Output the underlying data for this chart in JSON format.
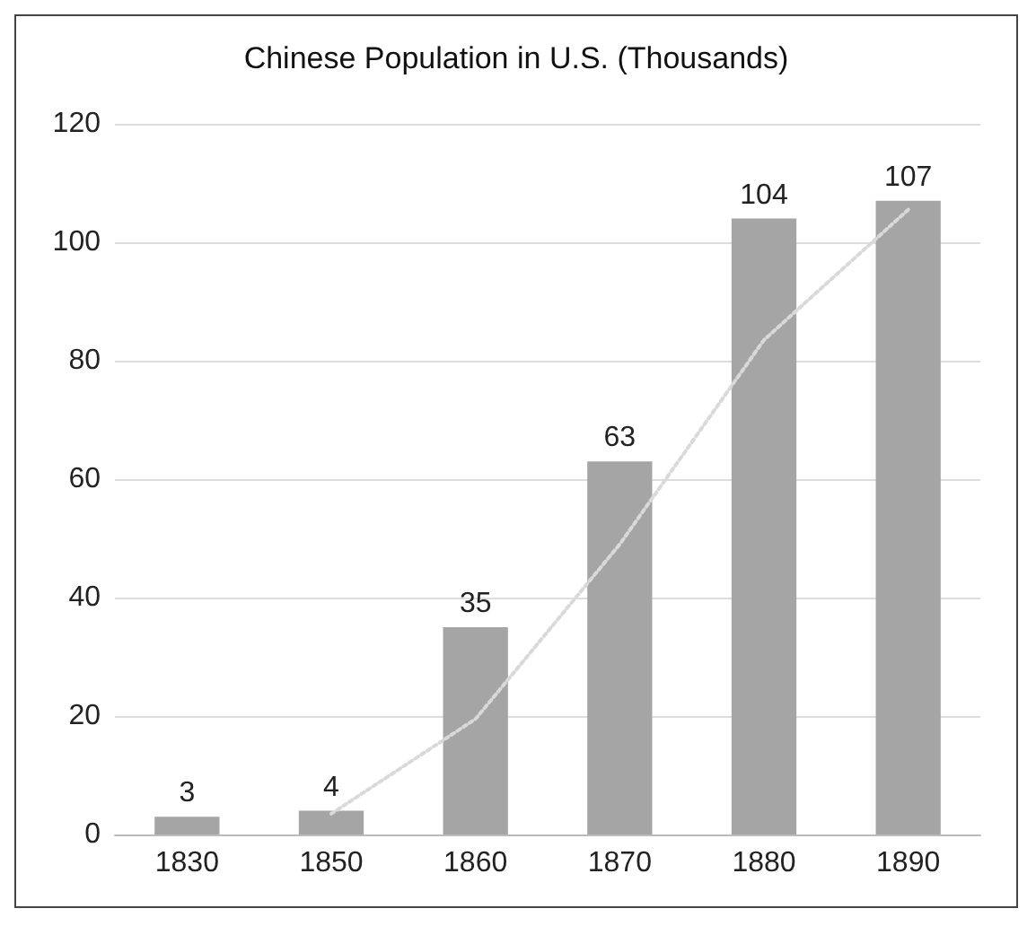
{
  "chart_data": {
    "type": "bar",
    "title": "Chinese Population in U.S. (Thousands)",
    "categories": [
      "1830",
      "1850",
      "1860",
      "1870",
      "1880",
      "1890"
    ],
    "series": [
      {
        "color": "#a5a5a5",
        "values": [
          3,
          4,
          35,
          63,
          104,
          107
        ],
        "value_labels": [
          "3",
          "4",
          "35",
          "63",
          "104",
          "107"
        ]
      },
      {
        "type": "line",
        "color": "#d9d9d9",
        "line_style": "dotted",
        "marker": "none",
        "values": [
          null,
          3.5,
          19.5,
          49,
          83.5,
          105.5
        ]
      }
    ],
    "ylim": [
      0,
      120
    ],
    "yticks": [
      0,
      20,
      40,
      60,
      80,
      100,
      120
    ],
    "grid": "y"
  }
}
